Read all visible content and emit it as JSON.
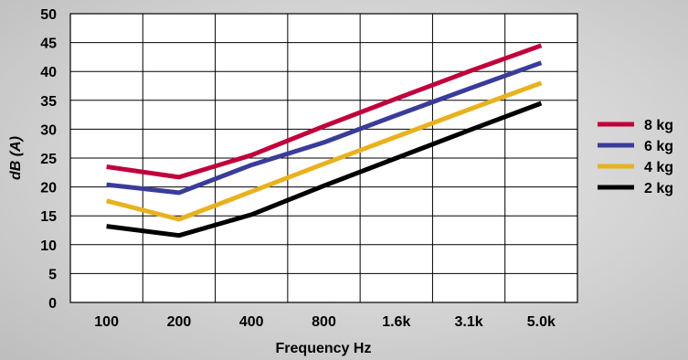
{
  "chart_data": {
    "type": "line",
    "title": "",
    "xlabel": "Frequency Hz",
    "ylabel": "dB (A)",
    "categories": [
      "100",
      "200",
      "400",
      "800",
      "1.6k",
      "3.1k",
      "5.0k"
    ],
    "ylim": [
      0,
      50
    ],
    "yticks": [
      "0",
      "5",
      "10",
      "15",
      "20",
      "25",
      "30",
      "35",
      "40",
      "45",
      "50"
    ],
    "grid": true,
    "legend_position": "right",
    "series": [
      {
        "name": "8 kg",
        "color": "#c0003c",
        "values": [
          23.5,
          21.7,
          25.5,
          30.5,
          35.3,
          40.0,
          44.5
        ]
      },
      {
        "name": "6 kg",
        "color": "#3a3c9a",
        "values": [
          20.4,
          19.0,
          23.8,
          27.7,
          32.4,
          37.0,
          41.5
        ]
      },
      {
        "name": "4 kg",
        "color": "#e8b21e",
        "values": [
          17.6,
          14.4,
          19.2,
          24.0,
          28.7,
          33.4,
          38.0
        ]
      },
      {
        "name": "2 kg",
        "color": "#000000",
        "values": [
          13.2,
          11.6,
          15.2,
          20.2,
          25.0,
          29.8,
          34.5
        ]
      }
    ]
  }
}
